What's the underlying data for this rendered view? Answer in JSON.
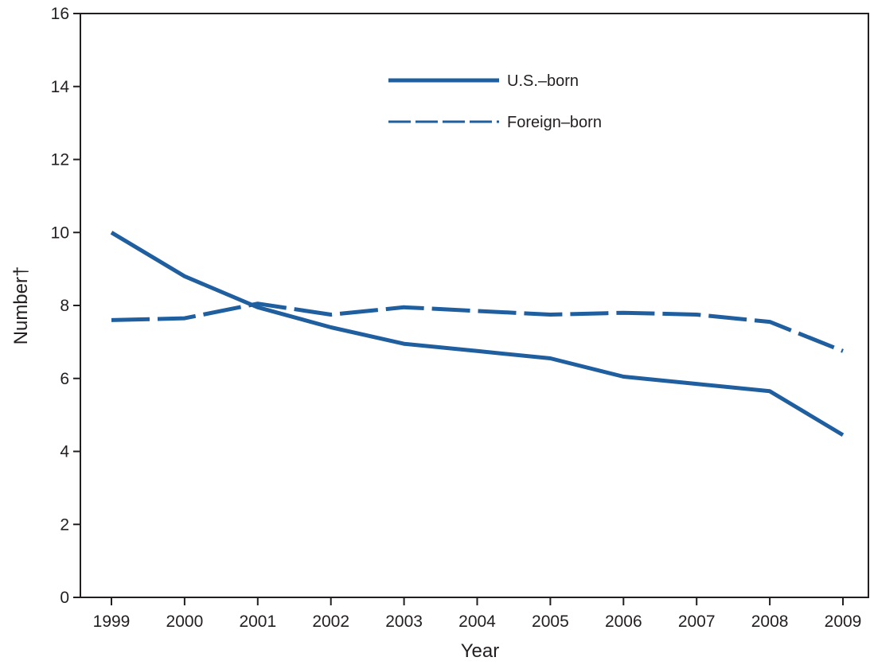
{
  "chart_data": {
    "type": "line",
    "title": "",
    "xlabel": "Year",
    "ylabel": "Number†",
    "categories": [
      "1999",
      "2000",
      "2001",
      "2002",
      "2003",
      "2004",
      "2005",
      "2006",
      "2007",
      "2008",
      "2009"
    ],
    "ylim": [
      0,
      16
    ],
    "yticks": [
      0,
      2,
      4,
      6,
      8,
      10,
      12,
      14,
      16
    ],
    "grid": false,
    "legend_position": "top-center",
    "series": [
      {
        "name": "U.S.–born",
        "style": "solid",
        "color": "#1f5f9f",
        "values": [
          10.0,
          8.8,
          7.95,
          7.4,
          6.95,
          6.75,
          6.55,
          6.05,
          5.85,
          5.65,
          4.45
        ]
      },
      {
        "name": "Foreign–born",
        "style": "dashed",
        "color": "#1f5f9f",
        "values": [
          7.6,
          7.65,
          8.05,
          7.75,
          7.95,
          7.85,
          7.75,
          7.8,
          7.75,
          7.55,
          6.75
        ]
      }
    ]
  }
}
